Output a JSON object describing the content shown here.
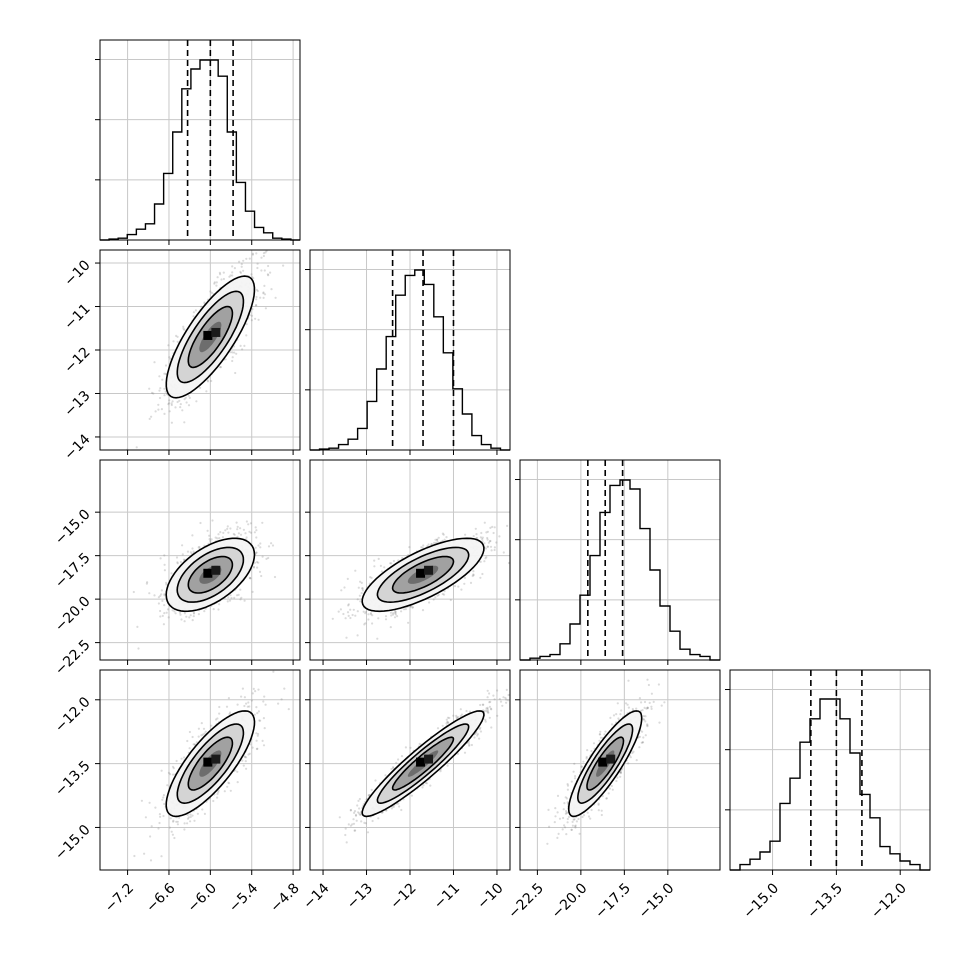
{
  "chart_data": {
    "type": "corner",
    "grid": true,
    "parameters": [
      {
        "index": 0,
        "range": [
          -7.6,
          -4.7
        ],
        "ticks": [
          -7.2,
          -6.6,
          -6.0,
          -5.4,
          -4.8
        ],
        "tick_labels": [
          "−7.2",
          "−6.6",
          "−6.0",
          "−5.4",
          "−4.8"
        ],
        "quantiles": [
          -6.33,
          -6.0,
          -5.67
        ],
        "histogram": [
          0.0,
          0.005,
          0.01,
          0.03,
          0.06,
          0.09,
          0.2,
          0.37,
          0.6,
          0.84,
          0.95,
          1.0,
          1.0,
          0.91,
          0.6,
          0.32,
          0.16,
          0.07,
          0.04,
          0.01,
          0.005,
          0.0
        ]
      },
      {
        "index": 1,
        "range": [
          -14.3,
          -9.7
        ],
        "ticks": [
          -14,
          -13,
          -12,
          -11,
          -10
        ],
        "tick_labels": [
          "−14",
          "−13",
          "−12",
          "−11",
          "−10"
        ],
        "quantiles": [
          -12.4,
          -11.7,
          -11.0
        ],
        "histogram": [
          0.0,
          0.005,
          0.01,
          0.03,
          0.06,
          0.12,
          0.27,
          0.45,
          0.63,
          0.86,
          0.97,
          1.0,
          0.92,
          0.74,
          0.54,
          0.34,
          0.2,
          0.08,
          0.03,
          0.01,
          0.0
        ]
      },
      {
        "index": 2,
        "range": [
          -23.5,
          -12.0
        ],
        "ticks": [
          -22.5,
          -20.0,
          -17.5,
          -15.0
        ],
        "tick_labels": [
          "−22.5",
          "−20.0",
          "−17.5",
          "−15.0"
        ],
        "quantiles": [
          -19.6,
          -18.6,
          -17.6
        ],
        "histogram": [
          0.0,
          0.01,
          0.02,
          0.03,
          0.09,
          0.2,
          0.36,
          0.58,
          0.82,
          0.97,
          1.0,
          0.95,
          0.73,
          0.5,
          0.3,
          0.16,
          0.06,
          0.03,
          0.02,
          0.0
        ]
      },
      {
        "index": 3,
        "range": [
          -16.0,
          -11.3
        ],
        "ticks": [
          -15.0,
          -13.5,
          -12.0
        ],
        "tick_labels": [
          "−15.0",
          "−13.5",
          "−12.0"
        ],
        "quantiles": [
          -14.1,
          -13.5,
          -12.9
        ],
        "histogram": [
          0.0,
          0.03,
          0.06,
          0.1,
          0.16,
          0.37,
          0.51,
          0.71,
          0.84,
          0.95,
          0.95,
          0.84,
          0.65,
          0.42,
          0.29,
          0.13,
          0.09,
          0.05,
          0.03,
          0.0
        ]
      }
    ],
    "row_tick_labels": {
      "1": [
        "−10",
        "−11",
        "−12",
        "−13",
        "−14"
      ],
      "2": [
        "−15.0",
        "−17.5",
        "−20.0",
        "−22.5"
      ],
      "3": [
        "−12.0",
        "−13.5",
        "−15.0"
      ]
    },
    "pairs": [
      {
        "x": 0,
        "y": 1,
        "mean": [
          -6.0,
          -11.7
        ],
        "sd": [
          0.32,
          0.7
        ],
        "corr": 0.78,
        "scatter_points": 1300
      },
      {
        "x": 0,
        "y": 2,
        "mean": [
          -6.0,
          -18.6
        ],
        "sd": [
          0.32,
          1.05
        ],
        "corr": 0.55,
        "scatter_points": 1300
      },
      {
        "x": 1,
        "y": 2,
        "mean": [
          -11.7,
          -18.6
        ],
        "sd": [
          0.7,
          1.05
        ],
        "corr": 0.72,
        "scatter_points": 1300
      },
      {
        "x": 0,
        "y": 3,
        "mean": [
          -6.0,
          -13.5
        ],
        "sd": [
          0.32,
          0.62
        ],
        "corr": 0.78,
        "scatter_points": 1300
      },
      {
        "x": 1,
        "y": 3,
        "mean": [
          -11.7,
          -13.5
        ],
        "sd": [
          0.7,
          0.62
        ],
        "corr": 0.93,
        "scatter_points": 1300
      },
      {
        "x": 2,
        "y": 3,
        "mean": [
          -18.6,
          -13.5
        ],
        "sd": [
          1.05,
          0.62
        ],
        "corr": 0.86,
        "scatter_points": 1300
      }
    ],
    "colors": {
      "points": "#7f7f7f",
      "contour": "#000000",
      "grid": "#c8c8c8"
    }
  }
}
